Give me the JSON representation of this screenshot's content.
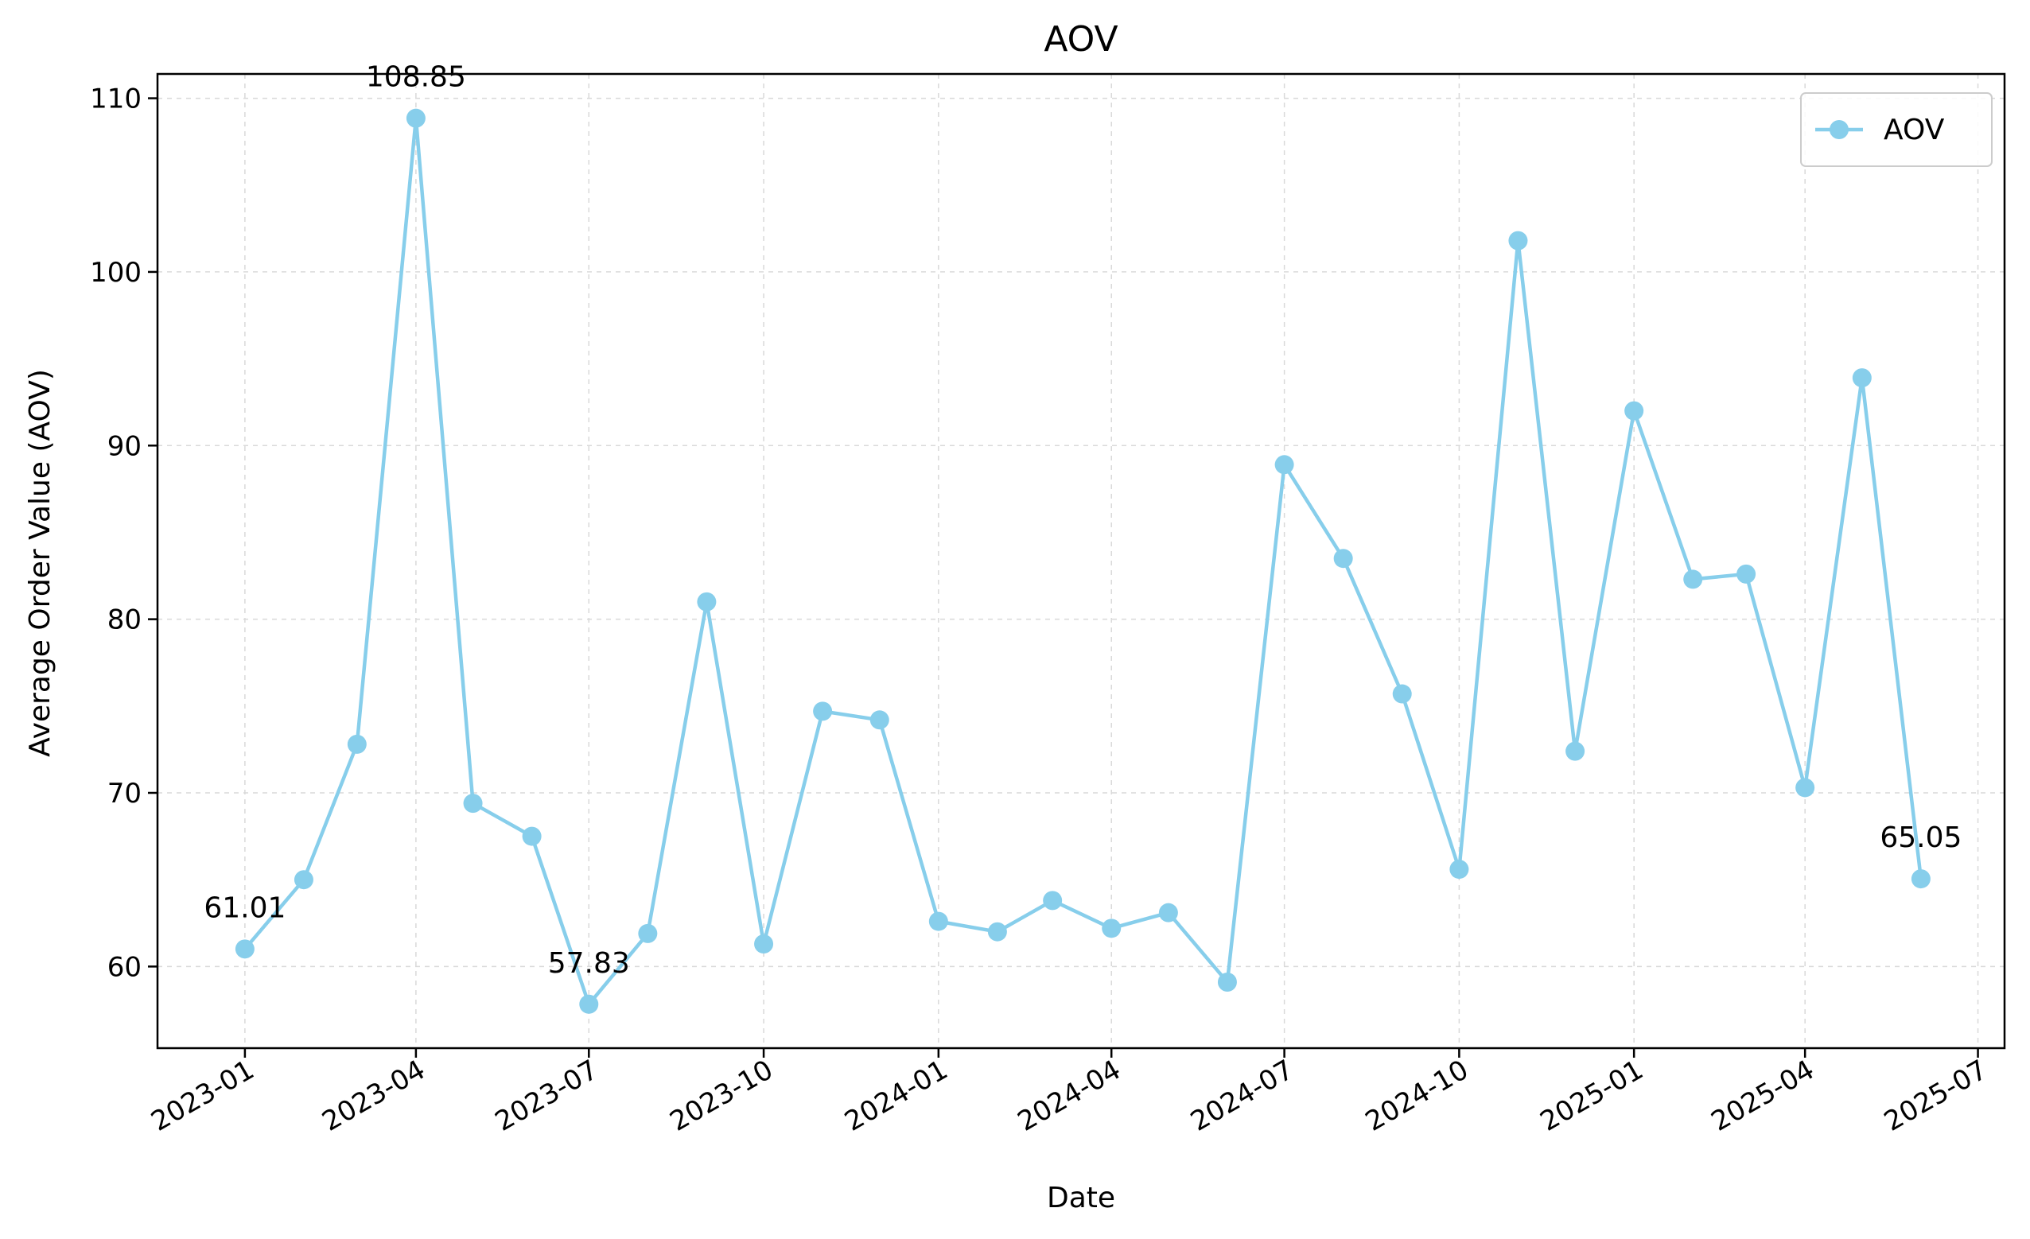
{
  "chart_data": {
    "type": "line",
    "title": "AOV",
    "xlabel": "Date",
    "ylabel": "Average Order Value (AOV)",
    "x": [
      "2023-01",
      "2023-02",
      "2023-03",
      "2023-04",
      "2023-05",
      "2023-06",
      "2023-07",
      "2023-08",
      "2023-09",
      "2023-10",
      "2023-11",
      "2023-12",
      "2024-01",
      "2024-02",
      "2024-03",
      "2024-04",
      "2024-05",
      "2024-06",
      "2024-07",
      "2024-08",
      "2024-09",
      "2024-10",
      "2024-11",
      "2024-12",
      "2025-01",
      "2025-02",
      "2025-03",
      "2025-04",
      "2025-05",
      "2025-06"
    ],
    "series": [
      {
        "name": "AOV",
        "color": "#87CEEB",
        "values": [
          61.01,
          65.0,
          72.8,
          108.85,
          69.4,
          67.5,
          57.83,
          61.9,
          81.0,
          61.3,
          74.7,
          74.2,
          62.6,
          62.0,
          63.8,
          62.2,
          63.1,
          59.1,
          88.9,
          83.5,
          75.7,
          65.6,
          101.8,
          72.4,
          92.0,
          82.3,
          82.6,
          70.3,
          93.9,
          65.05
        ]
      }
    ],
    "annotations": [
      {
        "x": "2023-01",
        "text": "61.01"
      },
      {
        "x": "2023-04",
        "text": "108.85"
      },
      {
        "x": "2023-07",
        "text": "57.83"
      },
      {
        "x": "2025-06",
        "text": "65.05"
      }
    ],
    "xticks": [
      "2023-01",
      "2023-04",
      "2023-07",
      "2023-10",
      "2024-01",
      "2024-04",
      "2024-07",
      "2024-10",
      "2025-01",
      "2025-04",
      "2025-07"
    ],
    "yticks": [
      60,
      70,
      80,
      90,
      100,
      110
    ],
    "xlim": [
      "2022-11-16",
      "2025-07-15"
    ],
    "ylim": [
      55.3,
      111.4
    ],
    "grid": true,
    "legend": "top-right"
  }
}
